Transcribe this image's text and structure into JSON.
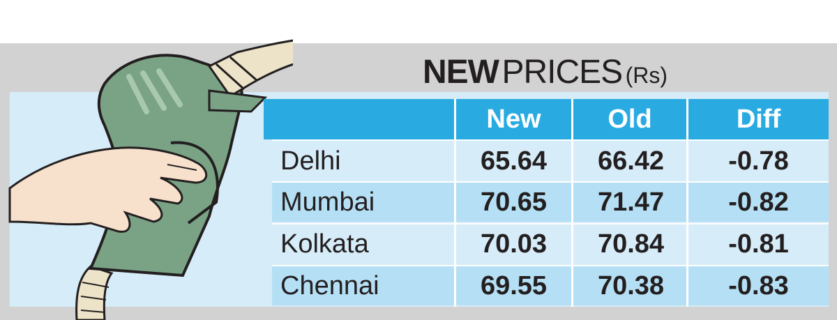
{
  "infographic": {
    "title_bold": "NEW",
    "title_light": "PRICES",
    "title_unit": "(Rs)",
    "columns": [
      "New",
      "Old",
      "Diff"
    ],
    "rows": [
      {
        "city": "Delhi",
        "new": "65.64",
        "old": "66.42",
        "diff": "-0.78"
      },
      {
        "city": "Mumbai",
        "new": "70.65",
        "old": "71.47",
        "diff": "-0.82"
      },
      {
        "city": "Kolkata",
        "new": "70.03",
        "old": "70.84",
        "diff": "-0.81"
      },
      {
        "city": "Chennai",
        "new": "69.55",
        "old": "70.38",
        "diff": "-0.83"
      }
    ],
    "colors": {
      "header_blue": "#29abe2",
      "row_light": "#d6ecf8",
      "row_alt": "#b5dff4",
      "band_gray": "#d2d2d2",
      "nozzle_green": "#7aa385"
    },
    "illustration_icon": "fuel-nozzle-with-hand-icon"
  }
}
